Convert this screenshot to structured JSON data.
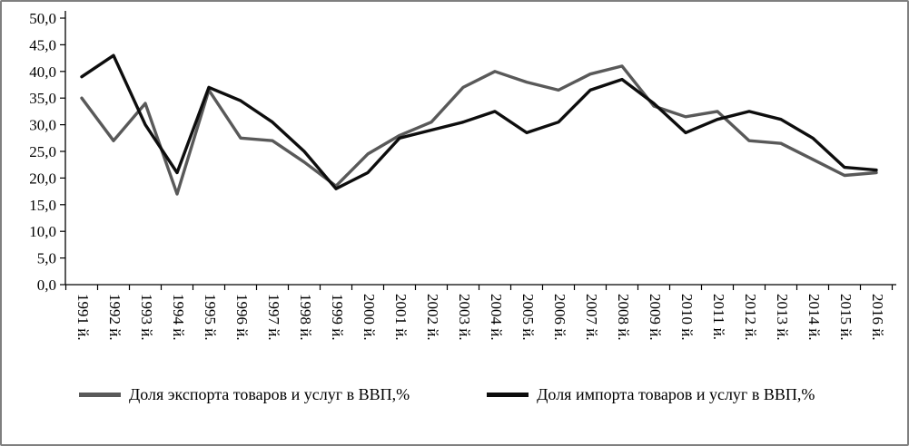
{
  "chart_data": {
    "type": "line",
    "title": "",
    "xlabel": "",
    "ylabel": "",
    "grid": false,
    "legend_position": "bottom",
    "categories": [
      "1991 й.",
      "1992 й.",
      "1993 й.",
      "1994 й.",
      "1995 й.",
      "1996 й.",
      "1997 й.",
      "1998 й.",
      "1999 й.",
      "2000 й.",
      "2001 й.",
      "2002 й.",
      "2003 й.",
      "2004 й.",
      "2005 й.",
      "2006 й.",
      "2007 й.",
      "2008 й.",
      "2009 й.",
      "2010 й.",
      "2011 й.",
      "2012 й.",
      "2013 й.",
      "2014 й.",
      "2015 й.",
      "2016 й."
    ],
    "y_axis": {
      "max": 50,
      "min": 0,
      "tick_values": [
        0,
        5,
        10,
        15,
        20,
        25,
        30,
        35,
        40,
        45,
        50
      ],
      "tick_labels": [
        "0,0",
        "5,0",
        "10,0",
        "15,0",
        "20,0",
        "25,0",
        "30,0",
        "35,0",
        "40,0",
        "45,0",
        "50,0"
      ]
    },
    "series": [
      {
        "name": "Доля экспорта товаров и услуг в ВВП,%",
        "color": "#595959",
        "width": 3.4,
        "values": [
          35.0,
          27.0,
          34.0,
          17.0,
          36.5,
          27.5,
          27.0,
          23.0,
          18.5,
          24.5,
          28.0,
          30.5,
          37.0,
          40.0,
          38.0,
          36.5,
          39.5,
          41.0,
          33.5,
          31.5,
          32.5,
          27.0,
          26.5,
          23.5,
          20.5,
          21.0
        ]
      },
      {
        "name": "Доля импорта товаров и услуг в ВВП,%",
        "color": "#0d0d0d",
        "width": 3.4,
        "values": [
          39.0,
          43.0,
          30.0,
          21.0,
          37.0,
          34.5,
          30.5,
          25.0,
          18.0,
          21.0,
          27.5,
          29.0,
          30.5,
          32.5,
          28.5,
          30.5,
          36.5,
          38.5,
          34.0,
          28.5,
          31.0,
          32.5,
          31.0,
          27.5,
          22.0,
          21.5
        ]
      }
    ]
  }
}
